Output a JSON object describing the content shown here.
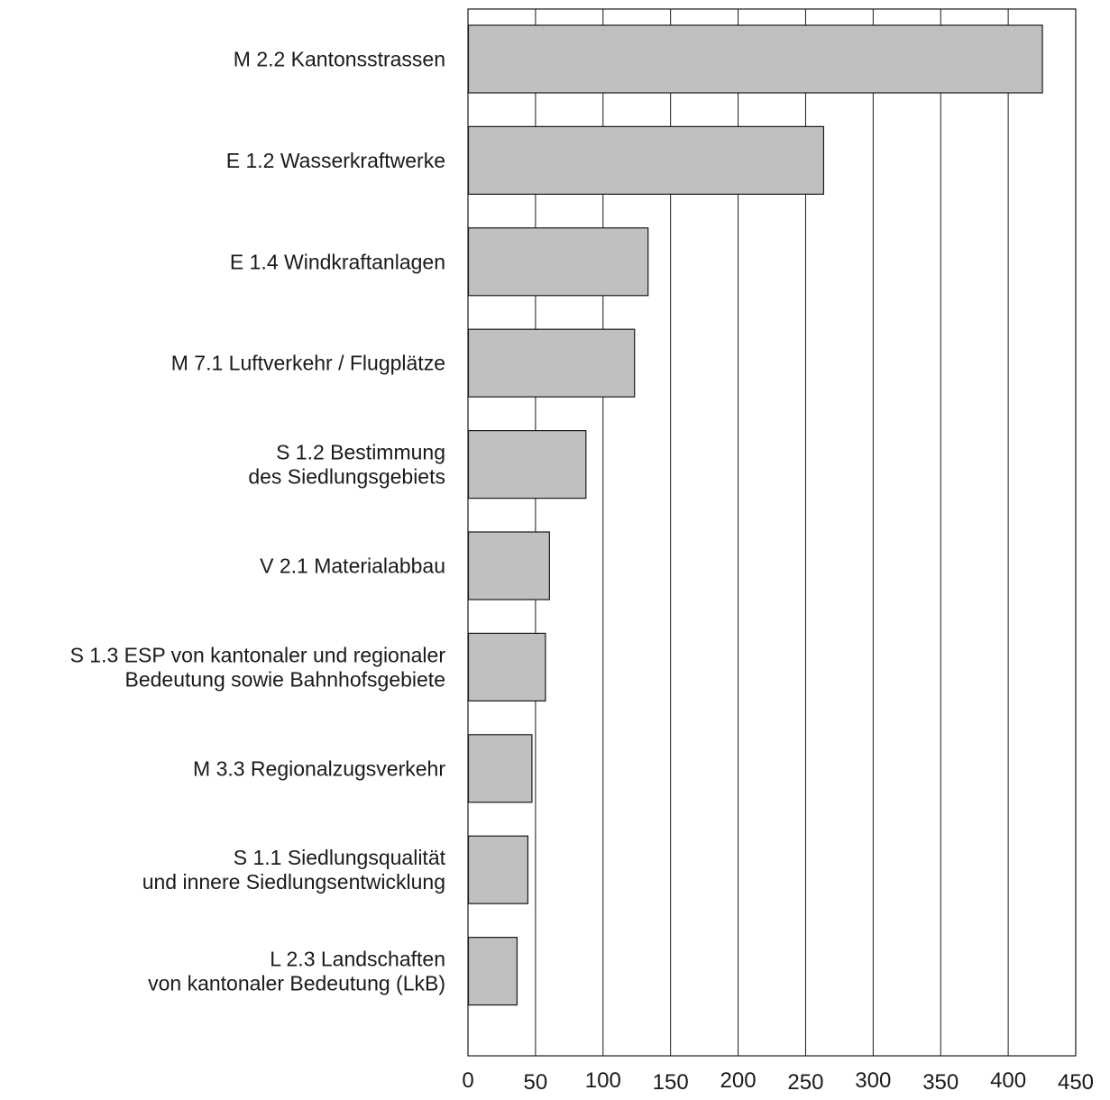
{
  "chart_data": {
    "type": "bar",
    "orientation": "horizontal",
    "categories": [
      [
        "M 2.2 Kantonsstrassen"
      ],
      [
        "E 1.2 Wasserkraftwerke"
      ],
      [
        "E 1.4 Windkraftanlagen"
      ],
      [
        "M 7.1 Luftverkehr / Flugplätze"
      ],
      [
        "S 1.2 Bestimmung",
        "des Siedlungsgebiets"
      ],
      [
        "V 2.1 Materialabbau"
      ],
      [
        "S 1.3 ESP von kantonaler und regionaler",
        "Bedeutung sowie Bahnhofsgebiete"
      ],
      [
        "M 3.3 Regionalzugsverkehr"
      ],
      [
        "S 1.1 Siedlungsqualität",
        "und innere Siedlungsentwicklung"
      ],
      [
        "L 2.3 Landschaften",
        "von kantonaler Bedeutung (LkB)"
      ]
    ],
    "values": [
      425,
      263,
      133,
      123,
      87,
      60,
      57,
      47,
      44,
      36
    ],
    "xlim": [
      0,
      450
    ],
    "xticks": [
      0,
      50,
      100,
      150,
      200,
      250,
      300,
      350,
      400,
      450
    ],
    "grid": true,
    "title": "",
    "xlabel": "",
    "ylabel": "",
    "colors": {
      "bar_fill": "#c0c0c0",
      "bar_stroke": "#1a1a1a",
      "grid": "#1a1a1a",
      "text": "#1a1a1a",
      "background": "#ffffff"
    }
  }
}
